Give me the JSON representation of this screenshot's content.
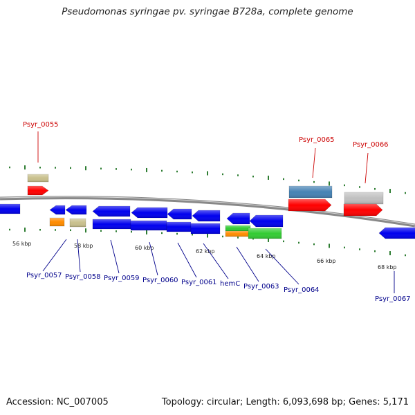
{
  "header": {
    "title": "Pseudomonas syringae pv. syringae B728a, complete genome"
  },
  "footer": {
    "accession": "Accession: NC_007005",
    "summary": "Topology: circular; Length: 6,093,698 bp; Genes: 5,171"
  },
  "colors": {
    "backbone": "#888888",
    "tick": "#2e7d32",
    "forward_label": "#cc0000",
    "reverse_label": "#00008b"
  },
  "scale": [
    {
      "id": "56",
      "text": "56 kbp"
    },
    {
      "id": "58",
      "text": "58 kbp"
    },
    {
      "id": "60",
      "text": "60 kbp"
    },
    {
      "id": "62",
      "text": "62 kbp"
    },
    {
      "id": "64",
      "text": "64 kbp"
    },
    {
      "id": "66",
      "text": "66 kbp"
    },
    {
      "id": "68",
      "text": "68 kbp"
    }
  ],
  "features": [
    {
      "id": "f0055",
      "label": "Psyr_0055",
      "strand": "+",
      "color": "#ff0000",
      "companion_color": "#c8c08c"
    },
    {
      "id": "f0057",
      "label": "Psyr_0057",
      "strand": "-",
      "color": "#0000ee",
      "companion_color": "#ff8c00"
    },
    {
      "id": "f0058",
      "label": "Psyr_0058",
      "strand": "-",
      "color": "#0000ee",
      "companion_color": "#c8c08c"
    },
    {
      "id": "f0059",
      "label": "Psyr_0059",
      "strand": "-",
      "color": "#0000ee",
      "companion_color": "#0000ee"
    },
    {
      "id": "f0060",
      "label": "Psyr_0060",
      "strand": "-",
      "color": "#0000ee",
      "companion_color": "#0000ee"
    },
    {
      "id": "f0061",
      "label": "Psyr_0061",
      "strand": "-",
      "color": "#0000ee",
      "companion_color": "#0000ee"
    },
    {
      "id": "fhemC",
      "label": "hemC",
      "strand": "-",
      "color": "#0000ee",
      "companion_color": "#0000ee"
    },
    {
      "id": "f0063",
      "label": "Psyr_0063",
      "strand": "-",
      "color": "#0000ee",
      "companion_color": "#33cc33"
    },
    {
      "id": "f0064",
      "label": "Psyr_0064",
      "strand": "-",
      "color": "#0000ee",
      "companion_color": "#33cc33"
    },
    {
      "id": "f0065",
      "label": "Psyr_0065",
      "strand": "+",
      "color": "#ff0000",
      "companion_color": "#4682b4"
    },
    {
      "id": "f0066",
      "label": "Psyr_0066",
      "strand": "+",
      "color": "#ff0000",
      "companion_color": "#c0c0c0"
    },
    {
      "id": "f0067",
      "label": "Psyr_0067",
      "strand": "-",
      "color": "#0000ee",
      "companion_color": ""
    }
  ]
}
